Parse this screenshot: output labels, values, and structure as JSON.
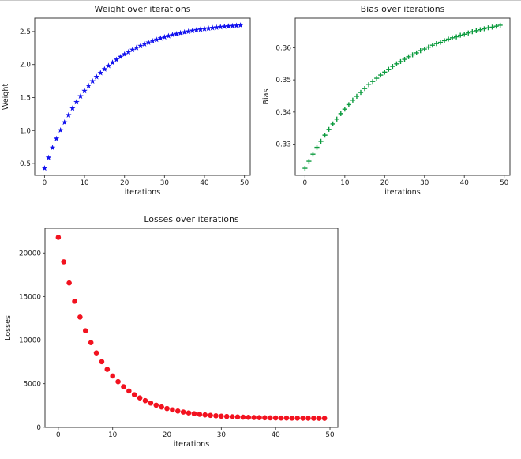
{
  "figure": {
    "background": "#ffffff",
    "top_edge_color": "#c9c9c9"
  },
  "chart_data": [
    {
      "id": "weight",
      "type": "scatter",
      "title": "Weight over iterations",
      "xlabel": "iterations",
      "ylabel": "Weight",
      "marker": "star",
      "color": "#1212ee",
      "grid": false,
      "legend": "none",
      "xlim": [
        -2.45,
        51.45
      ],
      "ylim": [
        0.322,
        2.702
      ],
      "xticks": [
        0,
        10,
        20,
        30,
        40,
        50
      ],
      "xtick_labels": [
        "0",
        "10",
        "20",
        "30",
        "40",
        "50"
      ],
      "yticks": [
        0.5,
        1.0,
        1.5,
        2.0,
        2.5
      ],
      "ytick_labels": [
        "0.5",
        "1.0",
        "1.5",
        "2.0",
        "2.5"
      ],
      "x": [
        0,
        1,
        2,
        3,
        4,
        5,
        6,
        7,
        8,
        9,
        10,
        11,
        12,
        13,
        14,
        15,
        16,
        17,
        18,
        19,
        20,
        21,
        22,
        23,
        24,
        25,
        26,
        27,
        28,
        29,
        30,
        31,
        32,
        33,
        34,
        35,
        36,
        37,
        38,
        39,
        40,
        41,
        42,
        43,
        44,
        45,
        46,
        47,
        48,
        49
      ],
      "y": [
        0.43,
        0.59,
        0.739,
        0.877,
        1.005,
        1.124,
        1.234,
        1.337,
        1.432,
        1.52,
        1.601,
        1.677,
        1.747,
        1.813,
        1.873,
        1.929,
        1.981,
        2.03,
        2.074,
        2.116,
        2.155,
        2.19,
        2.224,
        2.254,
        2.283,
        2.31,
        2.334,
        2.357,
        2.378,
        2.398,
        2.416,
        2.433,
        2.449,
        2.463,
        2.477,
        2.489,
        2.501,
        2.512,
        2.522,
        2.531,
        2.539,
        2.547,
        2.555,
        2.562,
        2.568,
        2.574,
        2.58,
        2.585,
        2.589,
        2.594
      ]
    },
    {
      "id": "bias",
      "type": "scatter",
      "title": "Bias over iterations",
      "xlabel": "iterations",
      "ylabel": "Bias",
      "marker": "plus",
      "color": "#0c9b3e",
      "grid": false,
      "legend": "none",
      "xlim": [
        -2.45,
        51.45
      ],
      "ylim": [
        0.3203,
        0.3692
      ],
      "xticks": [
        0,
        10,
        20,
        30,
        40,
        50
      ],
      "xtick_labels": [
        "0",
        "10",
        "20",
        "30",
        "40",
        "50"
      ],
      "yticks": [
        0.33,
        0.34,
        0.35,
        0.36
      ],
      "ytick_labels": [
        "0.33",
        "0.34",
        "0.35",
        "0.36"
      ],
      "x": [
        0,
        1,
        2,
        3,
        4,
        5,
        6,
        7,
        8,
        9,
        10,
        11,
        12,
        13,
        14,
        15,
        16,
        17,
        18,
        19,
        20,
        21,
        22,
        23,
        24,
        25,
        26,
        27,
        28,
        29,
        30,
        31,
        32,
        33,
        34,
        35,
        36,
        37,
        38,
        39,
        40,
        41,
        42,
        43,
        44,
        45,
        46,
        47,
        48,
        49
      ],
      "y": [
        0.3225,
        0.3247,
        0.3269,
        0.329,
        0.3309,
        0.3328,
        0.3346,
        0.3363,
        0.3378,
        0.3395,
        0.3409,
        0.3423,
        0.3437,
        0.3449,
        0.3461,
        0.3473,
        0.3485,
        0.3495,
        0.3505,
        0.3515,
        0.3524,
        0.3533,
        0.3542,
        0.355,
        0.3557,
        0.3564,
        0.3572,
        0.3578,
        0.3584,
        0.3591,
        0.3596,
        0.3602,
        0.3608,
        0.3613,
        0.3617,
        0.3622,
        0.3627,
        0.3631,
        0.3634,
        0.3639,
        0.3642,
        0.3646,
        0.365,
        0.3653,
        0.3656,
        0.3659,
        0.3662,
        0.3664,
        0.3667,
        0.367
      ]
    },
    {
      "id": "losses",
      "type": "scatter",
      "title": "Losses over iterations",
      "xlabel": "iterations",
      "ylabel": "Losses",
      "marker": "circle",
      "color": "#f2121f",
      "grid": false,
      "legend": "none",
      "xlim": [
        -2.45,
        51.45
      ],
      "ylim": [
        -22,
        22839
      ],
      "xticks": [
        0,
        10,
        20,
        30,
        40,
        50
      ],
      "xtick_labels": [
        "0",
        "10",
        "20",
        "30",
        "40",
        "50"
      ],
      "yticks": [
        0,
        5000,
        10000,
        15000,
        20000
      ],
      "ytick_labels": [
        "0",
        "5000",
        "10000",
        "15000",
        "20000"
      ],
      "x": [
        0,
        1,
        2,
        3,
        4,
        5,
        6,
        7,
        8,
        9,
        10,
        11,
        12,
        13,
        14,
        15,
        16,
        17,
        18,
        19,
        20,
        21,
        22,
        23,
        24,
        25,
        26,
        27,
        28,
        29,
        30,
        31,
        32,
        33,
        34,
        35,
        36,
        37,
        38,
        39,
        40,
        41,
        42,
        43,
        44,
        45,
        46,
        47,
        48,
        49
      ],
      "y": [
        21800,
        18992,
        16563,
        14462,
        12645,
        11073,
        9713,
        8537,
        7519,
        6639,
        5878,
        5219,
        4650,
        4157,
        3731,
        3362,
        3043,
        2767,
        2529,
        2322,
        2144,
        1989,
        1856,
        1740,
        1640,
        1554,
        1479,
        1414,
        1359,
        1310,
        1268,
        1232,
        1201,
        1174,
        1150,
        1130,
        1112,
        1097,
        1084,
        1073,
        1063,
        1054,
        1047,
        1041,
        1035,
        1030,
        1026,
        1023,
        1020,
        1017
      ]
    }
  ]
}
